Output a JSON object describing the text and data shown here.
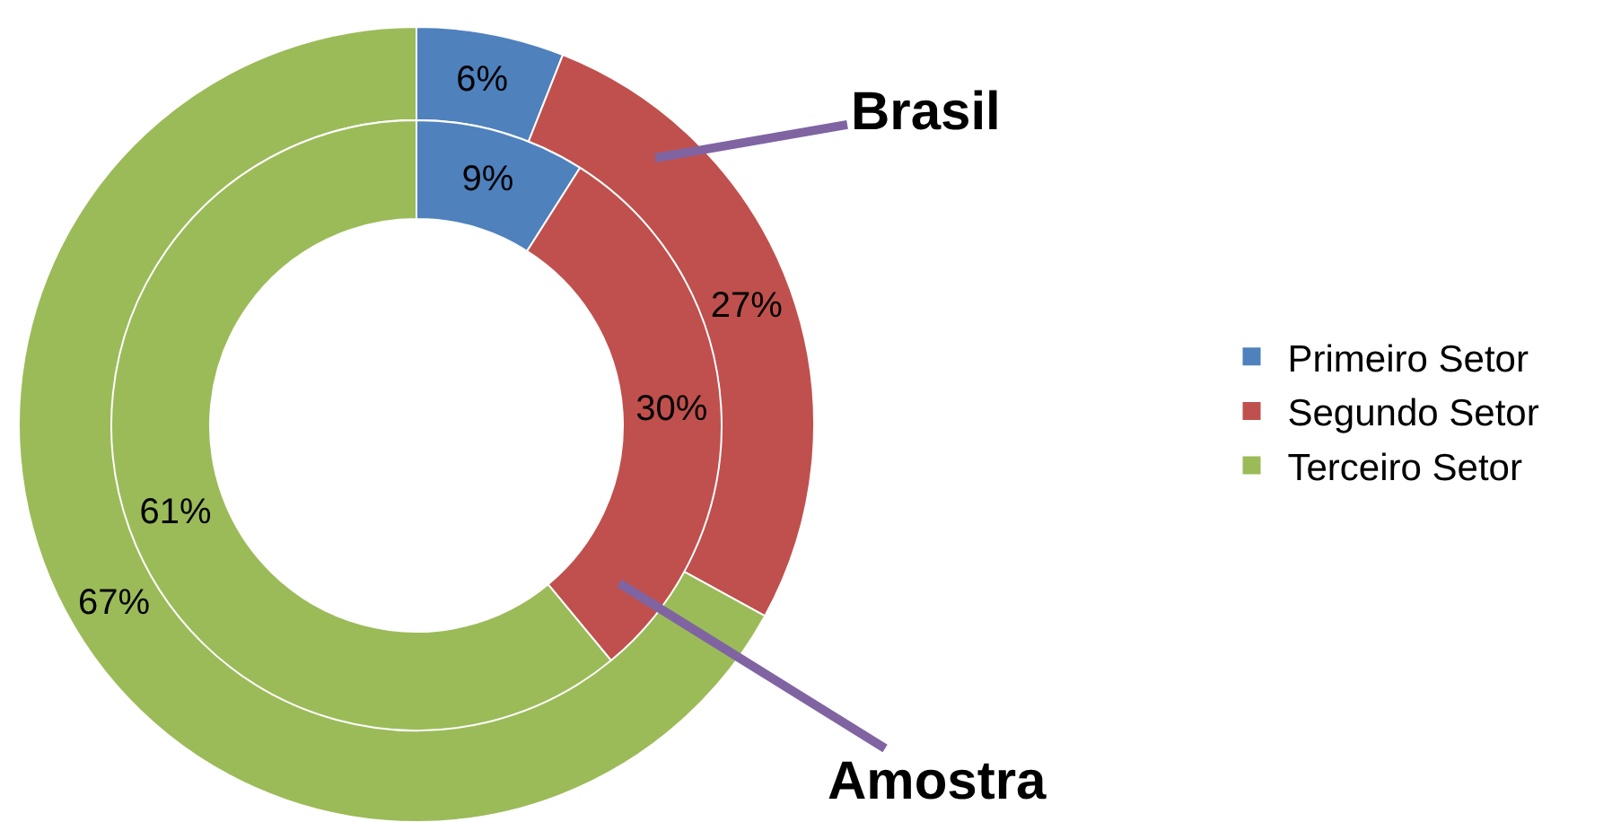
{
  "chart_data": {
    "type": "donut",
    "categories": [
      "Primeiro Setor",
      "Segundo Setor",
      "Terceiro Setor"
    ],
    "colors": [
      "#4f81bd",
      "#c0504d",
      "#9bbb59"
    ],
    "series": [
      {
        "name": "Brasil",
        "values": [
          6,
          27,
          67
        ],
        "value_labels": [
          "6%",
          "27%",
          "67%"
        ]
      },
      {
        "name": "Amostra",
        "values": [
          9,
          30,
          61
        ],
        "value_labels": [
          "9%",
          "30%",
          "61%"
        ]
      }
    ],
    "legend": "right"
  }
}
